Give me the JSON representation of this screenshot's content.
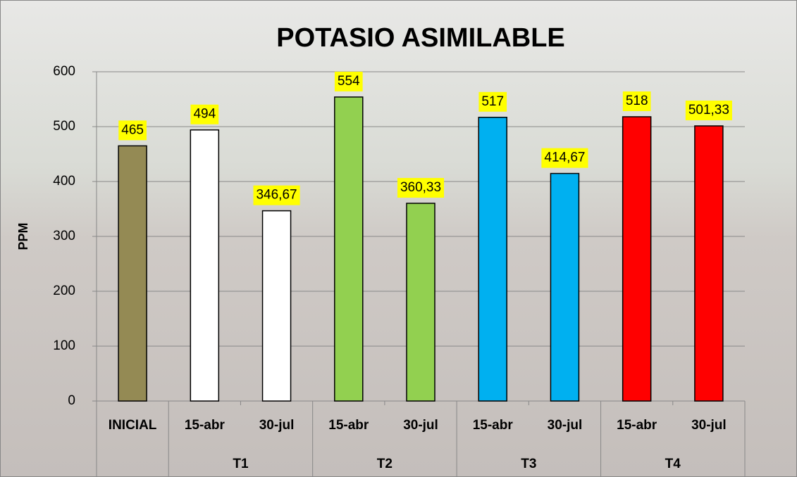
{
  "chart_data": {
    "type": "bar",
    "title": "POTASIO ASIMILABLE",
    "y_label": "PPM",
    "categories": [
      "INICIAL",
      "15-abr",
      "30-jul",
      "15-abr",
      "30-jul",
      "15-abr",
      "30-jul",
      "15-abr",
      "30-jul"
    ],
    "groups": [
      {
        "name": null,
        "span": 1
      },
      {
        "name": "T1",
        "span": 2
      },
      {
        "name": "T2",
        "span": 2
      },
      {
        "name": "T3",
        "span": 2
      },
      {
        "name": "T4",
        "span": 2
      }
    ],
    "values": [
      465,
      494,
      346.67,
      554,
      360.33,
      517,
      414.67,
      518,
      501.33
    ],
    "value_labels": [
      "465",
      "494",
      "346,67",
      "554",
      "360,33",
      "517",
      "414,67",
      "518",
      "501,33"
    ],
    "colors": [
      "#948a54",
      "#ffffff",
      "#ffffff",
      "#92d050",
      "#92d050",
      "#00b0f0",
      "#00b0f0",
      "#ff0000",
      "#ff0000"
    ],
    "ylim": [
      0,
      600
    ],
    "yticks": [
      0,
      100,
      200,
      300,
      400,
      500,
      600
    ],
    "grid": true
  }
}
